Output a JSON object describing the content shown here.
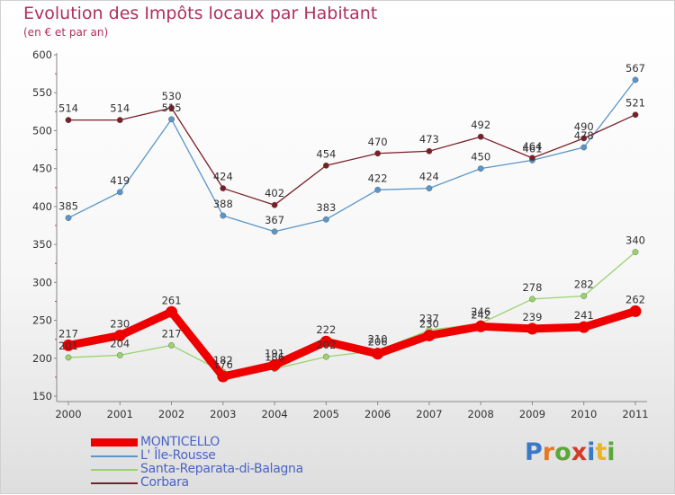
{
  "header": {
    "title": "Evolution des Impôts locaux par Habitant",
    "subtitle": "(en € et par an)"
  },
  "logo": {
    "text": "Proxiti"
  },
  "colors": {
    "title": "#b0305a",
    "legend_text": "#4a64c8",
    "tick_text": "#333333",
    "axis": "#888888"
  },
  "chart_data": {
    "type": "line",
    "title": "Evolution des Impôts locaux par Habitant",
    "subtitle": "(en € et par an)",
    "x": [
      "2000",
      "2001",
      "2002",
      "2003",
      "2004",
      "2005",
      "2006",
      "2007",
      "2008",
      "2009",
      "2010",
      "2011"
    ],
    "ylim": [
      150,
      600
    ],
    "yticks": [
      150,
      200,
      250,
      300,
      350,
      400,
      450,
      500,
      550,
      600
    ],
    "grid": false,
    "legend_position": "bottom-left",
    "series": [
      {
        "name": "MONTICELLO",
        "color": "#ee0000",
        "values": [
          217,
          230,
          261,
          176,
          191,
          222,
          206,
          230,
          242,
          239,
          241,
          262
        ],
        "labels": [
          "217",
          "230",
          "261",
          "176",
          "191",
          "222",
          "206",
          "230",
          "242",
          "239",
          "241",
          "262"
        ]
      },
      {
        "name": "L' Île-Rousse",
        "color": "#5a96c8",
        "values": [
          385,
          419,
          515,
          388,
          367,
          383,
          422,
          424,
          450,
          461,
          478,
          567
        ],
        "labels": [
          "385",
          "419",
          "515",
          "388",
          "367",
          "383",
          "422",
          "424",
          "450",
          "461",
          "478",
          "567"
        ]
      },
      {
        "name": "Santa-Reparata-di-Balagna",
        "color": "#99d36b",
        "values": [
          201,
          204,
          217,
          182,
          186,
          202,
          210,
          237,
          246,
          278,
          282,
          340
        ],
        "labels": [
          "201",
          "204",
          "217",
          "182",
          "186",
          "202",
          "210",
          "237",
          "246",
          "278",
          "282",
          "340"
        ]
      },
      {
        "name": "Corbara",
        "color": "#7a1f28",
        "values": [
          514,
          514,
          530,
          424,
          402,
          454,
          470,
          473,
          492,
          464,
          490,
          521
        ],
        "labels": [
          "514",
          "514",
          "530",
          "424",
          "402",
          "454",
          "470",
          "473",
          "492",
          "464",
          "490",
          "521"
        ]
      }
    ]
  }
}
